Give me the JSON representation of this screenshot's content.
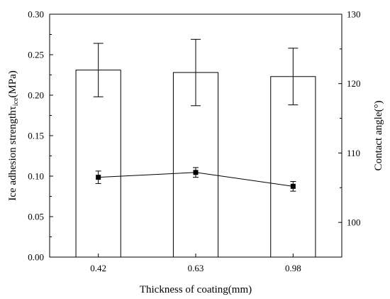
{
  "chart_data": {
    "type": "bar",
    "xlabel": "Thickness of coating(mm)",
    "ylabel": "Ice adhesion strength",
    "ylabel_symbol": "τ",
    "ylabel_subscript": "ice",
    "ylabel_unit": "(MPa)",
    "y2label": "Contact angle(°)",
    "categories": [
      "0.42",
      "0.63",
      "0.98"
    ],
    "ylim": [
      0,
      0.3
    ],
    "yticks": [
      "0.00",
      "0.05",
      "0.10",
      "0.15",
      "0.20",
      "0.25",
      "0.30"
    ],
    "y2lim": [
      95,
      130
    ],
    "y2ticks": [
      "100",
      "110",
      "120",
      "130"
    ],
    "series": [
      {
        "kind": "bar",
        "axis": "left",
        "values": [
          0.231,
          0.228,
          0.223
        ],
        "errors": [
          0.033,
          0.041,
          0.035
        ],
        "fill": "#ffffff",
        "stroke": "#000000"
      },
      {
        "kind": "line",
        "axis": "right",
        "marker": "square",
        "values": [
          106.5,
          107.2,
          105.2
        ],
        "errors": [
          0.9,
          0.7,
          0.7
        ],
        "color": "#000000"
      }
    ]
  }
}
